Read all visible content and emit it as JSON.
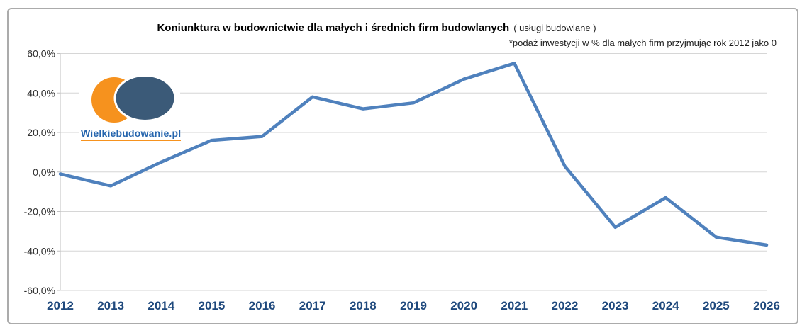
{
  "header": {
    "note_prefix": ""
  },
  "logo": {
    "text": "Wielkiebudowanie.pl",
    "orange_color": "#F6921E",
    "navy_color": "#3B5A78",
    "text_color": "#2565AE"
  },
  "chart_data": {
    "type": "line",
    "title": "Koniunktura w budownictwie dla małych i średnich firm budowlanych",
    "title_note": "( usługi budowlane )",
    "subtitle": "*podaż inwestycji w % dla małych firm przyjmując rok 2012 jako 0",
    "categories": [
      "2012",
      "2013",
      "2014",
      "2015",
      "2016",
      "2017",
      "2018",
      "2019",
      "2020",
      "2021",
      "2022",
      "2023",
      "2024",
      "2025",
      "2026"
    ],
    "values": [
      -1,
      -7,
      5,
      16,
      18,
      38,
      32,
      35,
      47,
      55,
      3,
      -28,
      -13,
      -33,
      -37
    ],
    "xlabel": "",
    "ylabel": "",
    "ylim": [
      -60,
      60
    ],
    "ytick_step": 20,
    "ytick_labels": [
      "60,0%",
      "40,0%",
      "20,0%",
      "0,0%",
      "-20,0%",
      "-40,0%",
      "-60,0%"
    ],
    "grid": true,
    "legend": "none",
    "line_color": "#4F81BD",
    "gridline_color": "#D6D6D6",
    "axis_color": "#BFBFBF",
    "xtick_color": "#1F497D",
    "ytick_color": "#303030"
  }
}
